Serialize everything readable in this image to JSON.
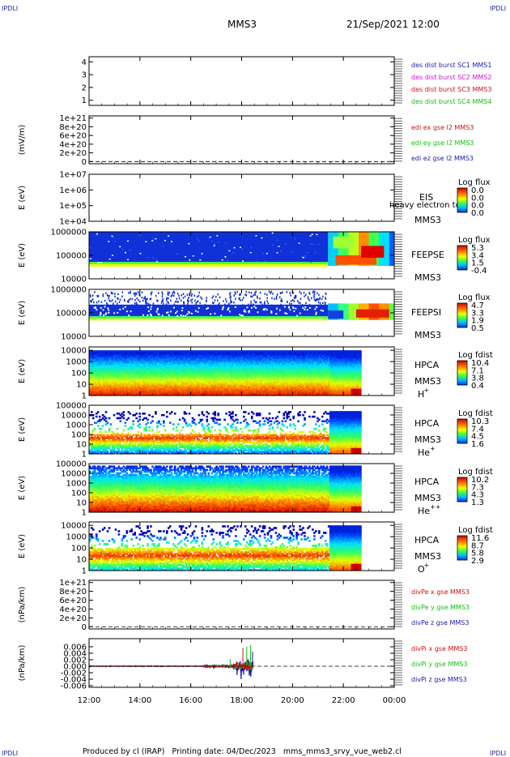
{
  "header": {
    "mission": "MMS3",
    "date": "21/Sep/2021 12:00",
    "corner_label": "IPDLI",
    "footer": "Produced by cl (IRAP)   Printing date: 04/Dec/2023   mms_mms3_srvy_vue_web2.cl"
  },
  "chart_data": {
    "type": "heatmap",
    "x_tick_labels": [
      "12:00",
      "14:00",
      "16:00",
      "18:00",
      "20:00",
      "22:00",
      "00:00"
    ],
    "x_ticks_hours": [
      12,
      14,
      16,
      18,
      20,
      22,
      24
    ],
    "x_range_hours": [
      12,
      24
    ],
    "panels": [
      {
        "id": "p1",
        "kind": "lines",
        "ylabel": "",
        "yticks": [
          "4",
          "3",
          "2",
          "1"
        ],
        "ytick_values": [
          4,
          3,
          2,
          1
        ],
        "ylim": [
          0.6,
          4.4
        ],
        "legend": [
          {
            "text": "des dist burst SC1 MMS1",
            "color": "#1a1aa8"
          },
          {
            "text": "des dist burst SC2 MMS2",
            "color": "#d010d0"
          },
          {
            "text": "des dist burst SC3 MMS3",
            "color": "#d01010"
          },
          {
            "text": "des dist burst SC4 MMS4",
            "color": "#10c010"
          }
        ]
      },
      {
        "id": "p2",
        "kind": "lines",
        "ylabel": "(mV/m)",
        "yticks": [
          "1e+21",
          "8e+20",
          "6e+20",
          "4e+20",
          "2e+20",
          "0"
        ],
        "ytick_values": [
          1.0,
          0.8,
          0.6,
          0.4,
          0.2,
          0.0
        ],
        "ylim": [
          -0.05,
          1.05
        ],
        "zero_dashed": true,
        "legend": [
          {
            "text": "edi ex gse l2 MMS3",
            "color": "#d01010"
          },
          {
            "text": "edi ey gse l2 MMS3",
            "color": "#10c010"
          },
          {
            "text": "edi ez gse l2 MMS3",
            "color": "#1a1aa8"
          }
        ]
      },
      {
        "id": "p3",
        "kind": "spectrogram",
        "ylabel": "E (eV)",
        "yticks": [
          "1e+07",
          "1e+06",
          "1e+05",
          "1e+04"
        ],
        "ytick_values": [
          7,
          6,
          5,
          4
        ],
        "ylim": [
          4,
          7
        ],
        "instrument": "EIS",
        "sub": "MMS3",
        "overlay": "heavy electron to",
        "cbar_title": "Log flux",
        "cbar_ticks": [
          "0.0",
          "0.0",
          "0.0",
          "0.0"
        ]
      },
      {
        "id": "p4",
        "kind": "spectrogram",
        "ylabel": "E (eV)",
        "yticks": [
          "1000000",
          "100000",
          "10000"
        ],
        "ytick_values": [
          6,
          5,
          4
        ],
        "ylim": [
          4,
          6
        ],
        "instrument": "FEEPSE",
        "sub": "MMS3",
        "cbar_title": "Log flux",
        "cbar_ticks": [
          "5.3",
          "3.4",
          "1.5",
          "-0.4"
        ]
      },
      {
        "id": "p5",
        "kind": "spectrogram",
        "ylabel": "E (eV)",
        "yticks": [
          "1000000",
          "100000",
          "10000"
        ],
        "ytick_values": [
          6,
          5,
          4
        ],
        "ylim": [
          4,
          6
        ],
        "instrument": "FEEPSI",
        "sub": "MMS3",
        "cbar_title": "Log flux",
        "cbar_ticks": [
          "4.7",
          "3.3",
          "1.9",
          "0.5"
        ]
      },
      {
        "id": "p6",
        "kind": "spectrogram",
        "ylabel": "E (eV)",
        "yticks": [
          "10000",
          "1000",
          "100",
          "10",
          "1"
        ],
        "ytick_values": [
          4,
          3,
          2,
          1,
          0
        ],
        "ylim": [
          0,
          4.3
        ],
        "instrument": "HPCA",
        "sub": "MMS3",
        "species": "H",
        "species_sup": "+",
        "cbar_title": "Log fdist",
        "cbar_ticks": [
          "10.4",
          "7.1",
          "3.8",
          "0.4"
        ]
      },
      {
        "id": "p7",
        "kind": "spectrogram",
        "ylabel": "E (eV)",
        "yticks": [
          "100000",
          "10000",
          "1000",
          "100",
          "10",
          "1"
        ],
        "ytick_values": [
          5,
          4,
          3,
          2,
          1,
          0
        ],
        "ylim": [
          0,
          5
        ],
        "instrument": "HPCA",
        "sub": "MMS3",
        "species": "He",
        "species_sup": "+",
        "cbar_title": "Log fdist",
        "cbar_ticks": [
          "10.3",
          "7.4",
          "4.5",
          "1.6"
        ]
      },
      {
        "id": "p8",
        "kind": "spectrogram",
        "ylabel": "E (eV)",
        "yticks": [
          "100000",
          "10000",
          "1000",
          "100",
          "10",
          "1"
        ],
        "ytick_values": [
          5,
          4,
          3,
          2,
          1,
          0
        ],
        "ylim": [
          0,
          5
        ],
        "instrument": "HPCA",
        "sub": "MMS3",
        "species": "He",
        "species_sup": "++",
        "cbar_title": "Log fdist",
        "cbar_ticks": [
          "10.2",
          "7.3",
          "4.3",
          "1.3"
        ]
      },
      {
        "id": "p9",
        "kind": "spectrogram",
        "ylabel": "E (eV)",
        "yticks": [
          "10000",
          "1000",
          "100",
          "10",
          "1"
        ],
        "ytick_values": [
          4,
          3,
          2,
          1,
          0
        ],
        "ylim": [
          0,
          4.3
        ],
        "instrument": "HPCA",
        "sub": "MMS3",
        "species": "O",
        "species_sup": "+",
        "cbar_title": "Log fdist",
        "cbar_ticks": [
          "11.6",
          "8.7",
          "5.8",
          "2.9"
        ]
      },
      {
        "id": "p10",
        "kind": "lines",
        "ylabel": "(nPa/km)",
        "yticks": [
          "1e+21",
          "8e+20",
          "6e+20",
          "4e+20",
          "2e+20",
          "0"
        ],
        "ytick_values": [
          1.0,
          0.8,
          0.6,
          0.4,
          0.2,
          0.0
        ],
        "ylim": [
          -0.05,
          1.05
        ],
        "zero_dashed": true,
        "legend": [
          {
            "text": "divPe x gse MMS3",
            "color": "#d01010"
          },
          {
            "text": "divPe y gse MMS3",
            "color": "#10c010"
          },
          {
            "text": "divPe z gse MMS3",
            "color": "#1a1aa8"
          }
        ]
      },
      {
        "id": "p11",
        "kind": "lines",
        "ylabel": "(nPa/km)",
        "yticks": [
          "0.006",
          "0.004",
          "0.002",
          "0.000",
          "-0.002",
          "-0.004",
          "-0.006"
        ],
        "ytick_values": [
          0.006,
          0.004,
          0.002,
          0.0,
          -0.002,
          -0.004,
          -0.006
        ],
        "ylim": [
          -0.0065,
          0.0085
        ],
        "zero_dashed": true,
        "noise": true,
        "legend": [
          {
            "text": "divPi x gse MMS3",
            "color": "#d01010"
          },
          {
            "text": "divPi y gse MMS3",
            "color": "#10c010"
          },
          {
            "text": "divPi z gse MMS3",
            "color": "#1a1aa8"
          }
        ]
      }
    ]
  }
}
